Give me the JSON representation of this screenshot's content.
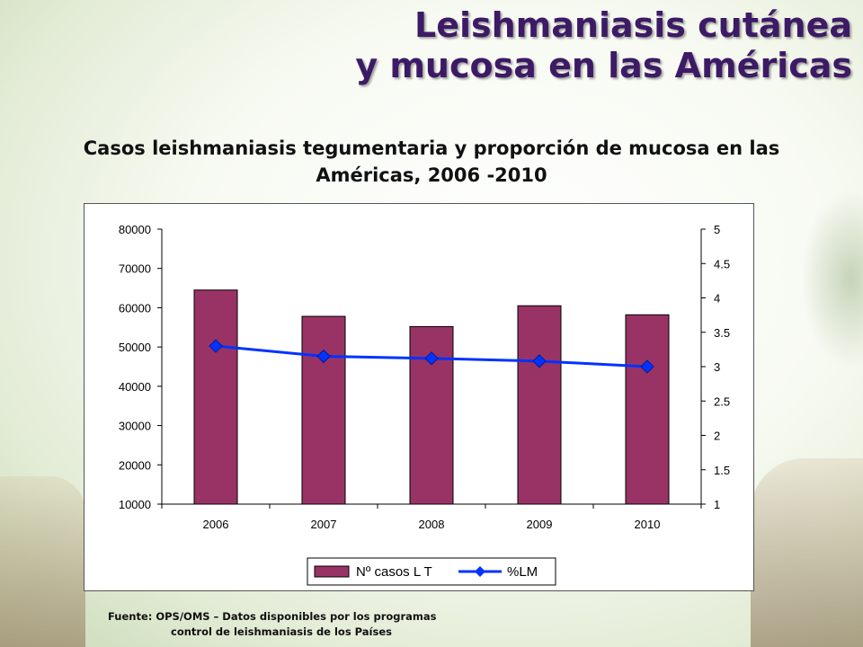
{
  "slide": {
    "title_line1": "Leishmaniasis cutánea",
    "title_line2": "y mucosa en las Américas",
    "source_line1": "Fuente:  OPS/OMS – Datos disponibles por los programas",
    "source_line2": "control de leishmaniasis de los Países"
  },
  "colors": {
    "title": "#3d1a66",
    "bar": "#993366",
    "line": "#0033ff"
  },
  "chart_data": {
    "type": "bar",
    "title": "Casos leishmaniasis tegumentaria y proporción de mucosa en las Américas, 2006 -2010",
    "categories": [
      "2006",
      "2007",
      "2008",
      "2009",
      "2010"
    ],
    "series": [
      {
        "name": "Nº casos L T",
        "type": "bar",
        "axis": "left",
        "values": [
          64500,
          57800,
          55200,
          60500,
          58200
        ]
      },
      {
        "name": "%LM",
        "type": "line",
        "axis": "right",
        "values": [
          3.3,
          3.15,
          3.12,
          3.08,
          3.0
        ]
      }
    ],
    "y_left": {
      "min": 10000,
      "max": 80000,
      "ticks": [
        "10000",
        "20000",
        "30000",
        "40000",
        "50000",
        "60000",
        "70000",
        "80000"
      ]
    },
    "y_right": {
      "min": 1,
      "max": 5,
      "ticks": [
        "1",
        "1.5",
        "2",
        "2.5",
        "3",
        "3.5",
        "4",
        "4.5",
        "5"
      ]
    },
    "legend_position": "bottom",
    "grid": false
  }
}
